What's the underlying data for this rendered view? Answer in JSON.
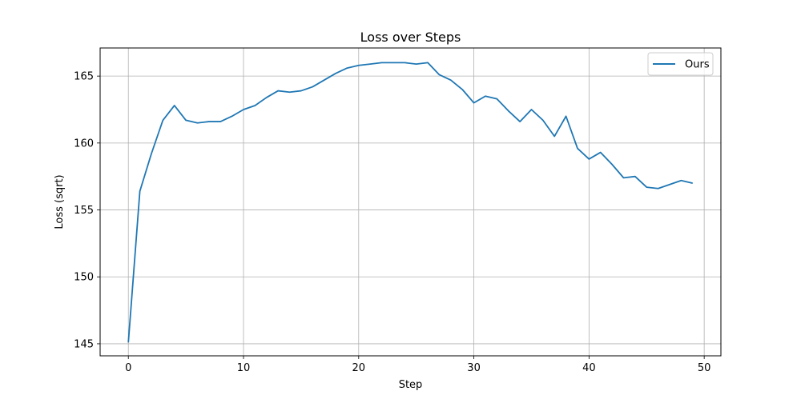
{
  "chart_data": {
    "type": "line",
    "title": "Loss over Steps",
    "xlabel": "Step",
    "ylabel": "Loss (sqrt)",
    "xlim": [
      -2.45,
      51.45
    ],
    "ylim": [
      144.1,
      167.1
    ],
    "xticks": [
      0,
      10,
      20,
      30,
      40,
      50
    ],
    "yticks": [
      145,
      150,
      155,
      160,
      165
    ],
    "grid": true,
    "legend_position": "top-right",
    "series": [
      {
        "name": "Ours",
        "color": "#1f77b4",
        "x": [
          0,
          1,
          2,
          3,
          4,
          5,
          6,
          7,
          8,
          9,
          10,
          11,
          12,
          13,
          14,
          15,
          16,
          17,
          18,
          19,
          20,
          21,
          22,
          23,
          24,
          25,
          26,
          27,
          28,
          29,
          30,
          31,
          32,
          33,
          34,
          35,
          36,
          37,
          38,
          39,
          40,
          41,
          42,
          43,
          44,
          45,
          46,
          47,
          48,
          49
        ],
        "y": [
          145.1,
          156.4,
          159.2,
          161.7,
          162.8,
          161.7,
          161.5,
          161.6,
          161.6,
          162.0,
          162.5,
          162.8,
          163.4,
          163.9,
          163.8,
          163.9,
          164.2,
          164.7,
          165.2,
          165.6,
          165.8,
          165.9,
          166.0,
          166.0,
          166.0,
          165.9,
          166.0,
          165.1,
          164.7,
          164.0,
          163.0,
          163.5,
          163.3,
          162.4,
          161.6,
          162.5,
          161.7,
          160.5,
          162.0,
          159.6,
          158.8,
          159.3,
          158.4,
          157.4,
          157.5,
          156.7,
          156.6,
          156.9,
          157.2,
          157.0
        ]
      }
    ]
  }
}
